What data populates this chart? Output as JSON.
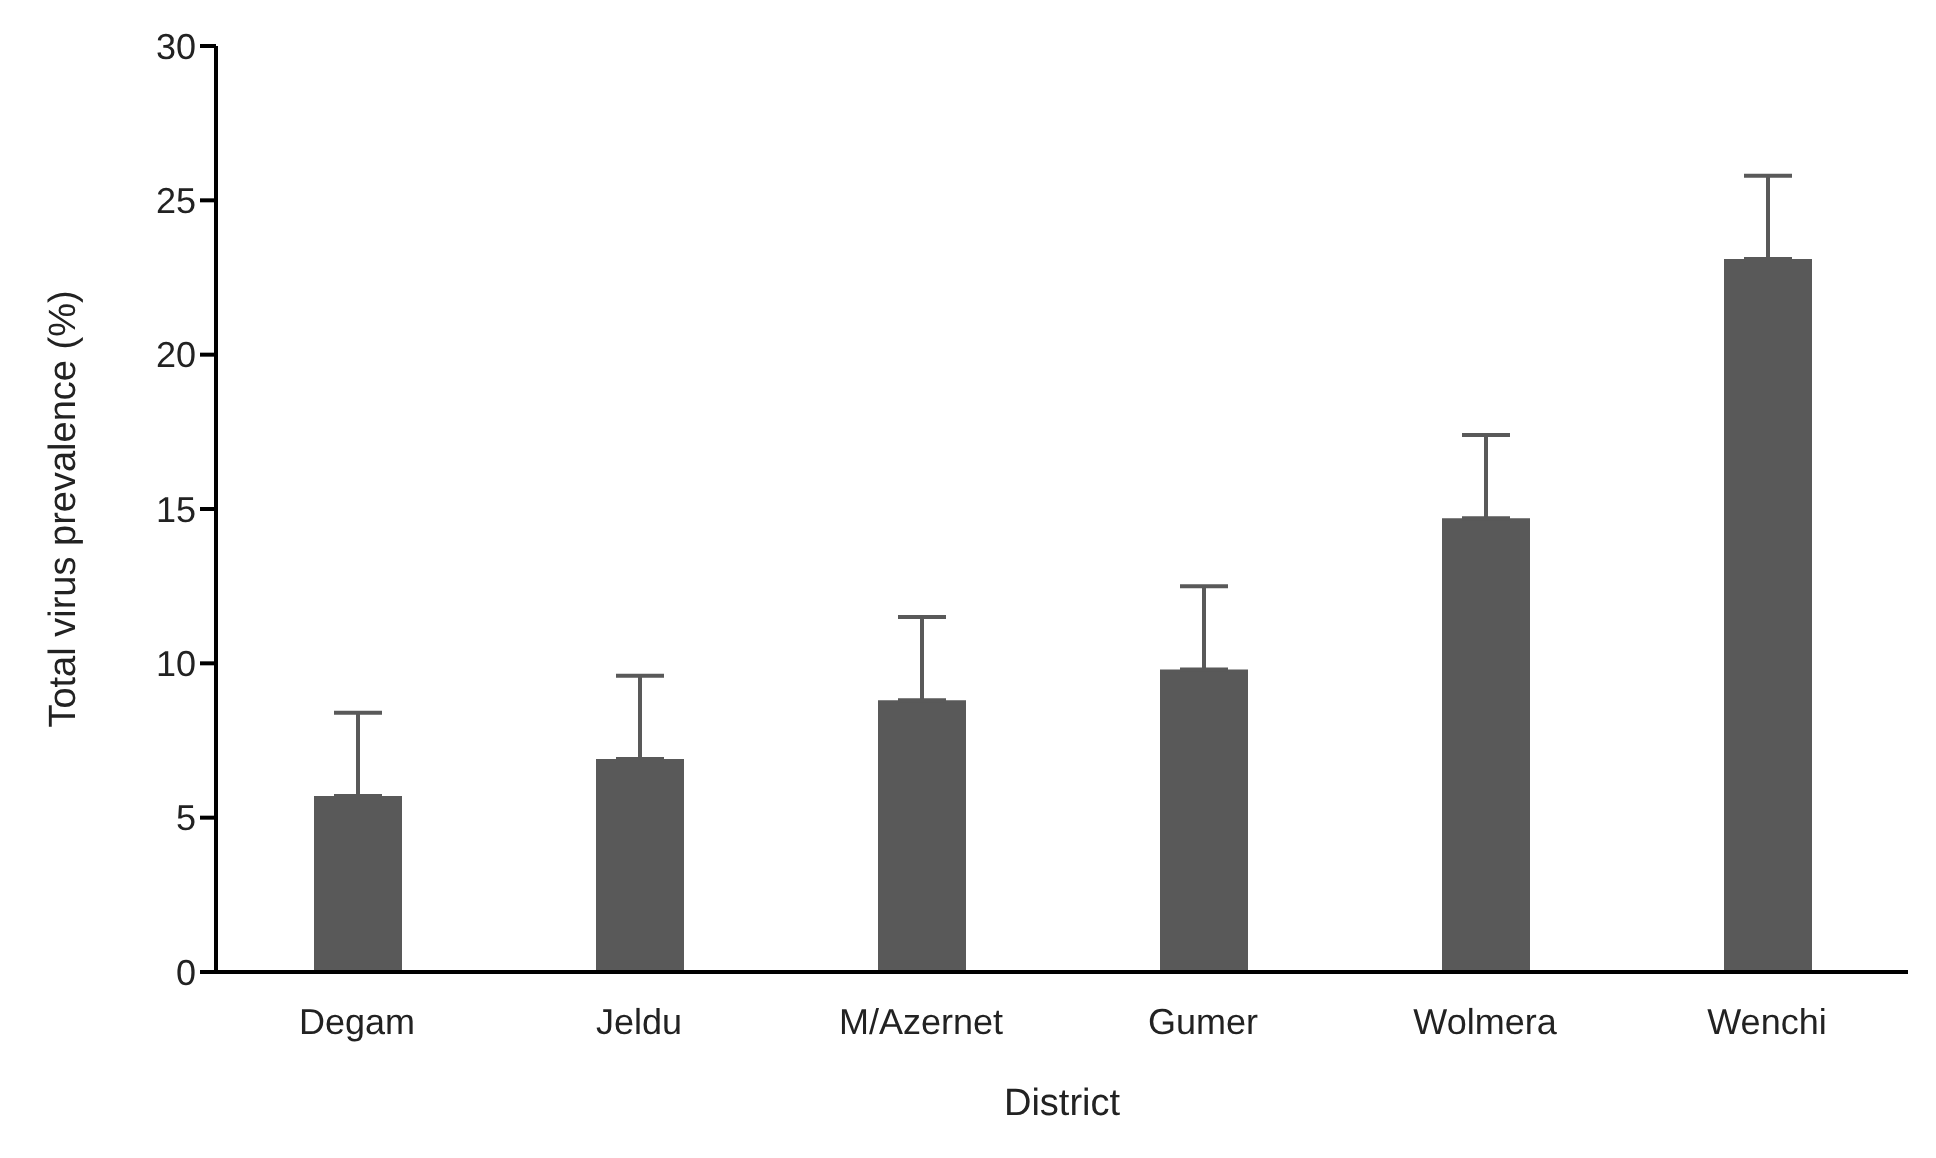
{
  "chart_data": {
    "type": "bar",
    "xlabel": "District",
    "ylabel": "Total virus prevalence (%)",
    "categories": [
      "Degam",
      "Jeldu",
      "M/Azernet",
      "Gumer",
      "Wolmera",
      "Wenchi"
    ],
    "values": [
      5.7,
      6.9,
      8.8,
      9.8,
      14.7,
      23.1
    ],
    "errors": [
      [
        5.7,
        8.4
      ],
      [
        6.9,
        9.6
      ],
      [
        8.8,
        11.5
      ],
      [
        9.8,
        12.5
      ],
      [
        14.7,
        17.4
      ],
      [
        23.1,
        25.8
      ]
    ],
    "color": "#595959",
    "ylim": [
      0,
      30
    ],
    "yticks": [
      0,
      5,
      10,
      15,
      20,
      25,
      30
    ],
    "grid": false,
    "legend": false
  }
}
